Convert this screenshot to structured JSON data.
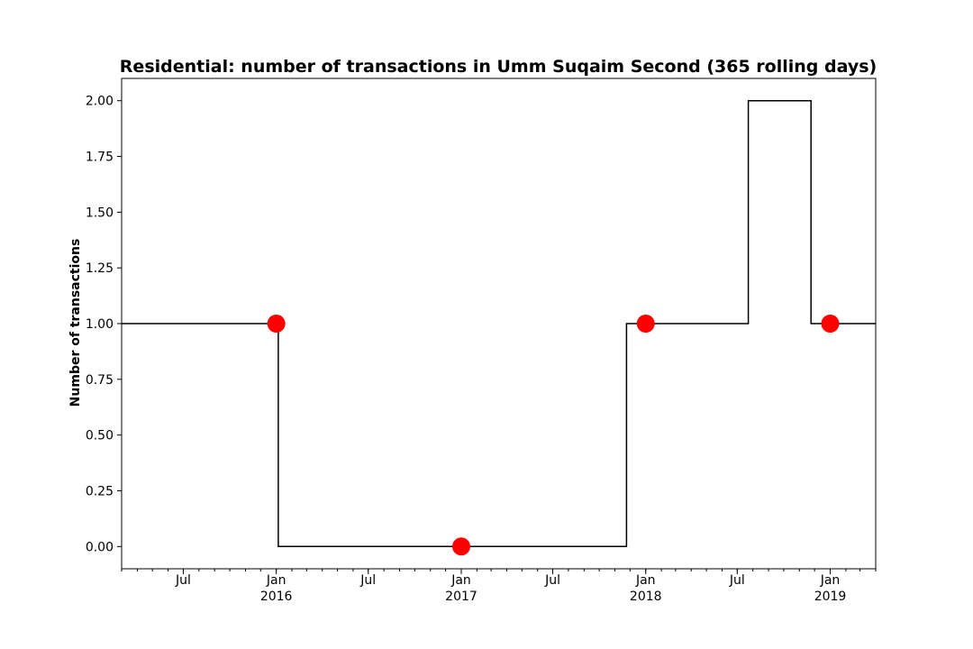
{
  "chart_data": {
    "type": "line",
    "title": "Residential: number of transactions in Umm Suqaim Second (365 rolling days)",
    "xlabel": "",
    "ylabel": "Number of transactions",
    "xlim": [
      "2015-03-01",
      "2019-04-01"
    ],
    "ylim": [
      -0.1,
      2.1
    ],
    "y_ticks": [
      0.0,
      0.25,
      0.5,
      0.75,
      1.0,
      1.25,
      1.5,
      1.75,
      2.0
    ],
    "y_tick_labels": [
      "0.00",
      "0.25",
      "0.50",
      "0.75",
      "1.00",
      "1.25",
      "1.50",
      "1.75",
      "2.00"
    ],
    "x_ticks": [
      {
        "date": "2015-07-01",
        "label": "Jul",
        "sublabel": ""
      },
      {
        "date": "2016-01-01",
        "label": "Jan",
        "sublabel": "2016"
      },
      {
        "date": "2016-07-01",
        "label": "Jul",
        "sublabel": ""
      },
      {
        "date": "2017-01-01",
        "label": "Jan",
        "sublabel": "2017"
      },
      {
        "date": "2017-07-01",
        "label": "Jul",
        "sublabel": ""
      },
      {
        "date": "2018-01-01",
        "label": "Jan",
        "sublabel": "2018"
      },
      {
        "date": "2018-07-01",
        "label": "Jul",
        "sublabel": ""
      },
      {
        "date": "2019-01-01",
        "label": "Jan",
        "sublabel": "2019"
      }
    ],
    "series": [
      {
        "line_style": "step",
        "color": "#000000",
        "points": [
          {
            "x": "2015-03-01",
            "y": 1
          },
          {
            "x": "2016-01-05",
            "y": 1
          },
          {
            "x": "2016-01-05",
            "y": 0
          },
          {
            "x": "2017-11-24",
            "y": 0
          },
          {
            "x": "2017-11-24",
            "y": 1
          },
          {
            "x": "2018-07-23",
            "y": 1
          },
          {
            "x": "2018-07-23",
            "y": 2
          },
          {
            "x": "2018-11-24",
            "y": 2
          },
          {
            "x": "2018-11-24",
            "y": 1
          },
          {
            "x": "2019-04-01",
            "y": 1
          }
        ]
      },
      {
        "marker": "circle",
        "color": "#ff0000",
        "points": [
          {
            "x": "2016-01-01",
            "y": 1
          },
          {
            "x": "2017-01-01",
            "y": 0
          },
          {
            "x": "2018-01-01",
            "y": 1
          },
          {
            "x": "2019-01-01",
            "y": 1
          }
        ]
      }
    ],
    "grid": false,
    "legend": "none"
  }
}
